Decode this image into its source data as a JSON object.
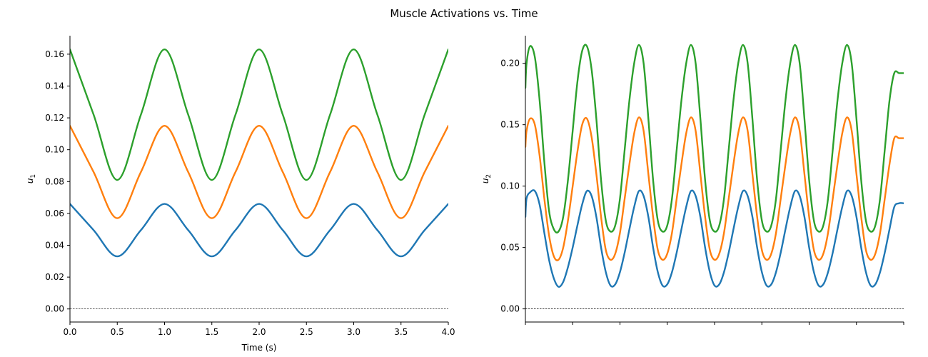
{
  "figure": {
    "title": "Muscle Activations vs. Time"
  },
  "chart_data": [
    {
      "type": "line",
      "title": "",
      "xlabel": "Time (s)",
      "ylabel": "u",
      "ylabel_subscript": "1",
      "xlim": [
        0.0,
        4.0
      ],
      "ylim": [
        -0.0082,
        0.1716
      ],
      "xticks": [
        0.0,
        0.5,
        1.0,
        1.5,
        2.0,
        2.5,
        3.0,
        3.5,
        4.0
      ],
      "xtick_labels": [
        "0.0",
        "0.5",
        "1.0",
        "1.5",
        "2.0",
        "2.5",
        "3.0",
        "3.5",
        "4.0"
      ],
      "yticks": [
        0.0,
        0.02,
        0.04,
        0.06,
        0.08,
        0.1,
        0.12,
        0.14,
        0.16
      ],
      "ytick_labels": [
        "0.00",
        "0.02",
        "0.04",
        "0.06",
        "0.08",
        "0.10",
        "0.12",
        "0.14",
        "0.16"
      ],
      "hline": 0.0,
      "grid": false,
      "legend": "none",
      "x": [
        0.0,
        0.25,
        0.5,
        0.75,
        1.0,
        1.25,
        1.5,
        1.75,
        2.0,
        2.25,
        2.5,
        2.75,
        3.0,
        3.25,
        3.5,
        3.75,
        4.0
      ],
      "series": [
        {
          "color": "#1f77b4",
          "values": [
            0.066,
            0.0495,
            0.033,
            0.0495,
            0.066,
            0.0495,
            0.033,
            0.0495,
            0.066,
            0.0495,
            0.033,
            0.0495,
            0.066,
            0.0495,
            0.033,
            0.0495,
            0.066
          ]
        },
        {
          "color": "#ff7f0e",
          "values": [
            0.115,
            0.086,
            0.057,
            0.086,
            0.115,
            0.086,
            0.057,
            0.086,
            0.115,
            0.086,
            0.057,
            0.086,
            0.115,
            0.086,
            0.057,
            0.086,
            0.115
          ]
        },
        {
          "color": "#2ca02c",
          "values": [
            0.163,
            0.122,
            0.081,
            0.122,
            0.163,
            0.122,
            0.081,
            0.122,
            0.163,
            0.122,
            0.081,
            0.122,
            0.163,
            0.122,
            0.081,
            0.122,
            0.163
          ]
        }
      ]
    },
    {
      "type": "line",
      "title": "",
      "xlabel": "",
      "ylabel": "u",
      "ylabel_subscript": "2",
      "xlim": [
        0.0,
        4.0
      ],
      "ylim": [
        -0.0107,
        0.2225
      ],
      "xticks": [
        0.0,
        0.5,
        1.0,
        1.5,
        2.0,
        2.5,
        3.0,
        3.5,
        4.0
      ],
      "xtick_labels": [],
      "yticks": [
        0.0,
        0.05,
        0.1,
        0.15,
        0.2
      ],
      "ytick_labels": [
        "0.00",
        "0.05",
        "0.10",
        "0.15",
        "0.20"
      ],
      "hline": 0.0,
      "grid": false,
      "legend": "none",
      "x": [
        0.0,
        0.0125,
        0.05,
        0.1,
        0.15,
        0.2,
        0.25,
        0.3,
        0.35,
        0.4,
        0.45,
        0.5,
        0.55,
        0.6,
        0.65,
        0.7,
        0.75,
        0.8,
        0.85,
        0.9,
        0.95,
        1.0,
        1.05,
        1.1,
        1.15,
        1.2,
        1.25,
        1.3,
        1.35,
        1.4,
        1.45,
        1.5,
        1.55,
        1.6,
        1.65,
        1.7,
        1.75,
        1.8,
        1.85,
        1.9,
        1.95,
        2.0,
        2.05,
        2.1,
        2.15,
        2.2,
        2.25,
        2.3,
        2.35,
        2.4,
        2.45,
        2.5,
        2.55,
        2.6,
        2.65,
        2.7,
        2.75,
        2.8,
        2.85,
        2.9,
        2.95,
        3.0,
        3.05,
        3.1,
        3.15,
        3.2,
        3.25,
        3.3,
        3.35,
        3.4,
        3.45,
        3.5,
        3.55,
        3.6,
        3.65,
        3.7,
        3.75,
        3.8,
        3.85,
        3.9,
        3.95,
        4.0
      ],
      "series": [
        {
          "color": "#1f77b4",
          "values": [
            0.075,
            0.09,
            0.095,
            0.096,
            0.085,
            0.062,
            0.04,
            0.025,
            0.018,
            0.022,
            0.034,
            0.05,
            0.068,
            0.085,
            0.096,
            0.092,
            0.075,
            0.05,
            0.03,
            0.019,
            0.02,
            0.03,
            0.046,
            0.065,
            0.083,
            0.096,
            0.092,
            0.075,
            0.05,
            0.03,
            0.019,
            0.02,
            0.03,
            0.046,
            0.065,
            0.083,
            0.096,
            0.092,
            0.075,
            0.05,
            0.03,
            0.019,
            0.02,
            0.03,
            0.046,
            0.065,
            0.083,
            0.096,
            0.092,
            0.075,
            0.05,
            0.03,
            0.019,
            0.02,
            0.03,
            0.046,
            0.065,
            0.083,
            0.096,
            0.092,
            0.075,
            0.05,
            0.03,
            0.019,
            0.02,
            0.03,
            0.046,
            0.065,
            0.083,
            0.096,
            0.092,
            0.075,
            0.05,
            0.03,
            0.019,
            0.02,
            0.03,
            0.046,
            0.065,
            0.083,
            0.086,
            0.086
          ]
        },
        {
          "color": "#ff7f0e",
          "values": [
            0.132,
            0.145,
            0.155,
            0.15,
            0.125,
            0.09,
            0.06,
            0.043,
            0.04,
            0.05,
            0.072,
            0.1,
            0.128,
            0.15,
            0.155,
            0.14,
            0.11,
            0.075,
            0.048,
            0.04,
            0.045,
            0.062,
            0.09,
            0.118,
            0.143,
            0.156,
            0.145,
            0.11,
            0.075,
            0.048,
            0.04,
            0.045,
            0.062,
            0.09,
            0.118,
            0.143,
            0.156,
            0.145,
            0.11,
            0.075,
            0.048,
            0.04,
            0.045,
            0.062,
            0.09,
            0.118,
            0.143,
            0.156,
            0.145,
            0.11,
            0.075,
            0.048,
            0.04,
            0.045,
            0.062,
            0.09,
            0.118,
            0.143,
            0.156,
            0.145,
            0.11,
            0.075,
            0.048,
            0.04,
            0.045,
            0.062,
            0.09,
            0.118,
            0.143,
            0.156,
            0.145,
            0.11,
            0.075,
            0.048,
            0.04,
            0.045,
            0.062,
            0.09,
            0.118,
            0.139,
            0.139,
            0.139
          ]
        },
        {
          "color": "#2ca02c",
          "values": [
            0.18,
            0.2,
            0.214,
            0.205,
            0.17,
            0.12,
            0.08,
            0.065,
            0.063,
            0.075,
            0.105,
            0.145,
            0.185,
            0.21,
            0.214,
            0.195,
            0.155,
            0.105,
            0.072,
            0.063,
            0.068,
            0.09,
            0.13,
            0.17,
            0.2,
            0.215,
            0.2,
            0.155,
            0.105,
            0.072,
            0.063,
            0.068,
            0.09,
            0.13,
            0.17,
            0.2,
            0.215,
            0.2,
            0.155,
            0.105,
            0.072,
            0.063,
            0.068,
            0.09,
            0.13,
            0.17,
            0.2,
            0.215,
            0.2,
            0.155,
            0.105,
            0.072,
            0.063,
            0.068,
            0.09,
            0.13,
            0.17,
            0.2,
            0.215,
            0.2,
            0.155,
            0.105,
            0.072,
            0.063,
            0.068,
            0.09,
            0.13,
            0.17,
            0.2,
            0.215,
            0.2,
            0.155,
            0.105,
            0.072,
            0.063,
            0.068,
            0.09,
            0.13,
            0.17,
            0.192,
            0.192,
            0.192
          ]
        }
      ]
    }
  ]
}
